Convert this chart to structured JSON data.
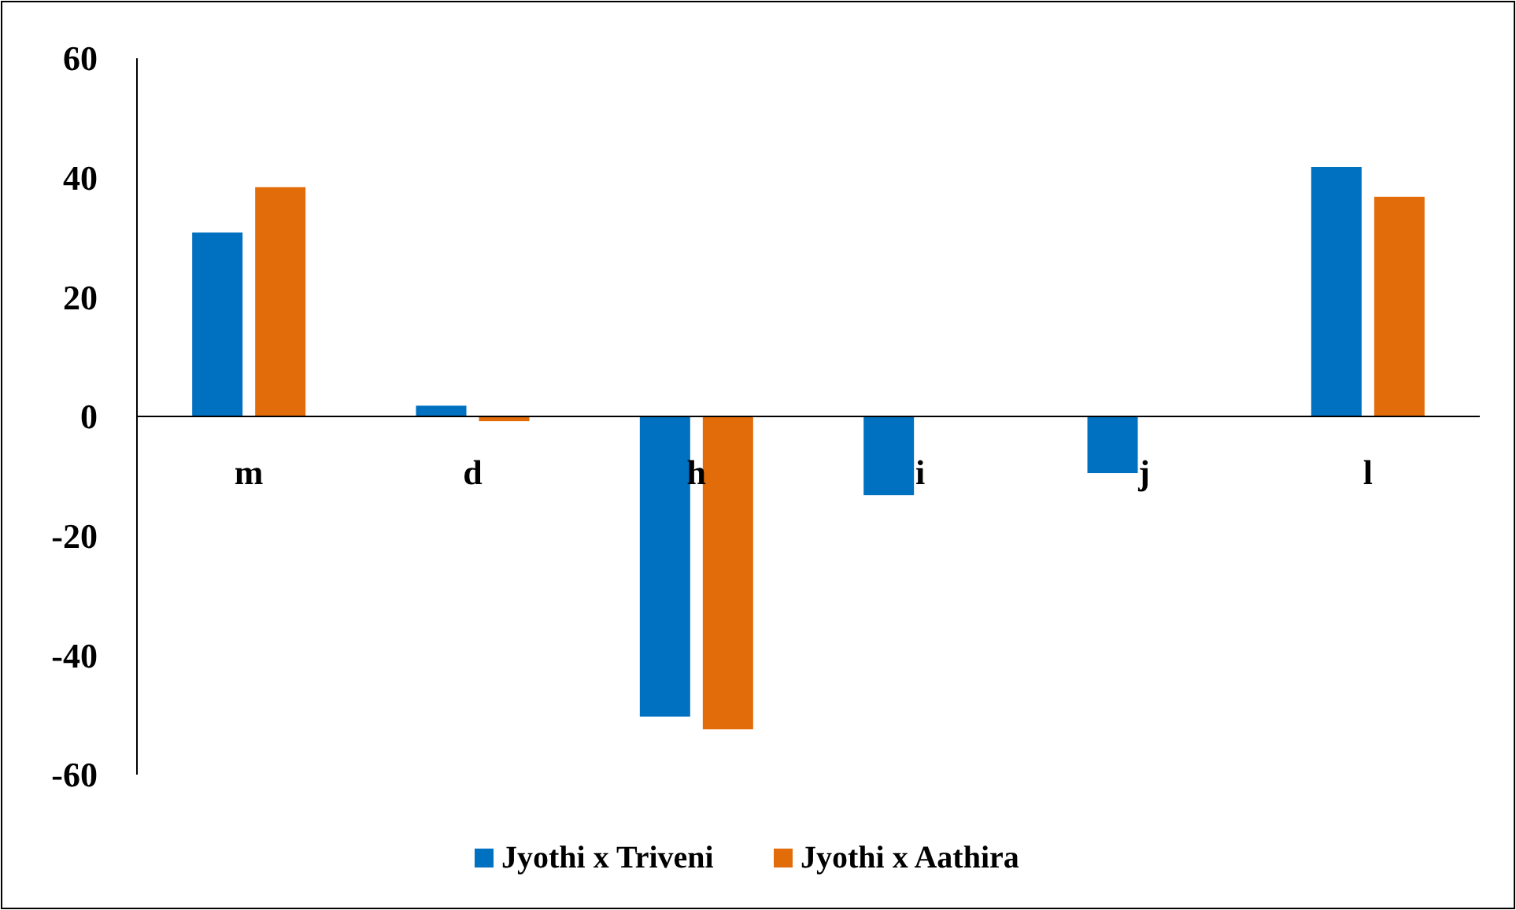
{
  "chart_data": {
    "type": "bar",
    "categories": [
      "m",
      "d",
      "h",
      "i",
      "j",
      "l"
    ],
    "series": [
      {
        "name": "Jyothi x Triveni",
        "color": "#0070c0",
        "values": [
          30.8,
          1.8,
          -50.3,
          -13.2,
          -9.5,
          41.8
        ]
      },
      {
        "name": "Jyothi x Aathira",
        "color": "#e36c0a",
        "values": [
          38.4,
          -0.8,
          -52.4,
          0,
          0,
          36.8
        ]
      }
    ],
    "ylim": [
      -60,
      60
    ],
    "yticks": [
      -60,
      -40,
      -20,
      0,
      20,
      40,
      60
    ],
    "grid": false,
    "legend": "bottom"
  }
}
